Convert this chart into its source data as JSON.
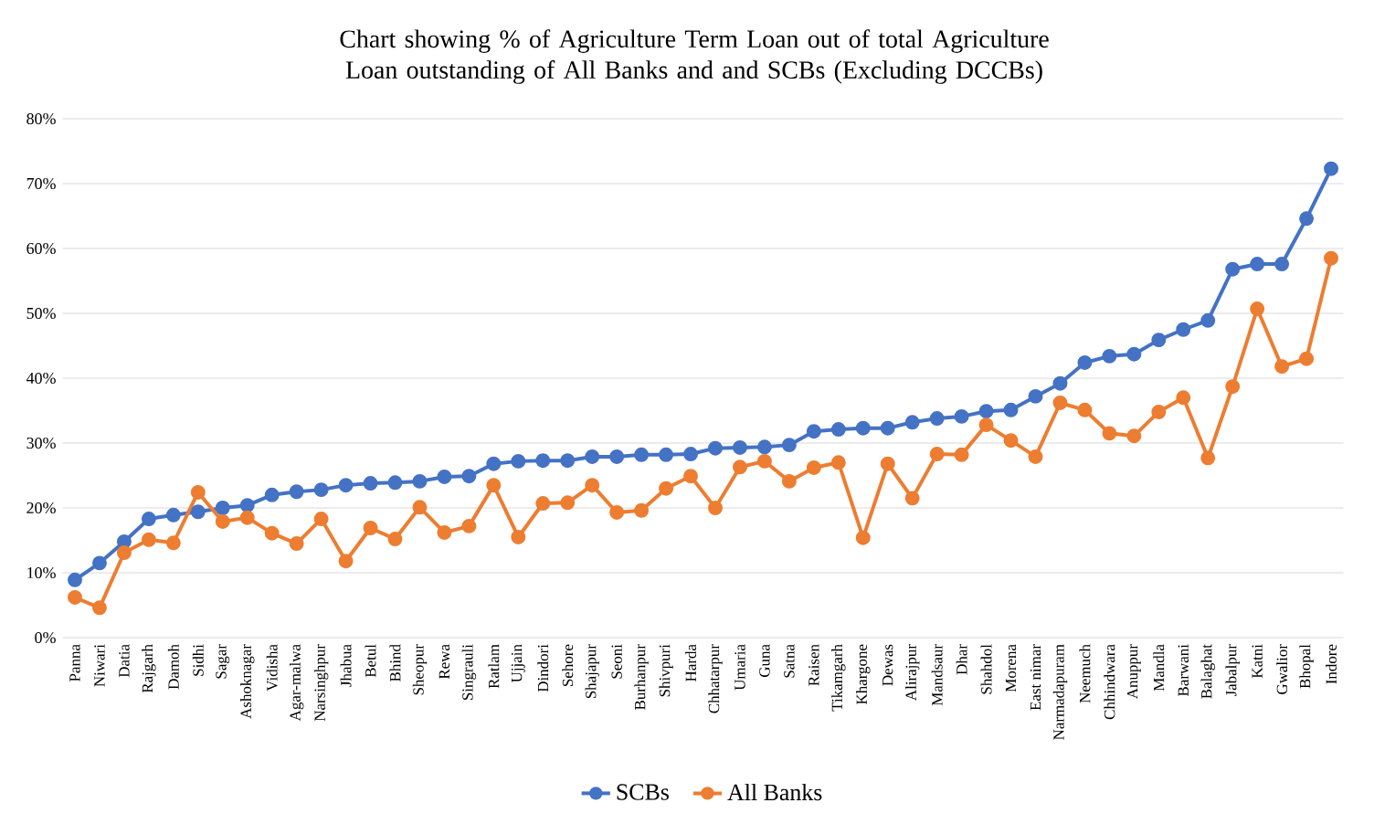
{
  "chart_data": {
    "type": "line",
    "title": "Chart showing % of Agriculture Term Loan out of total Agriculture Loan outstanding of All Banks and and SCBs (Excluding DCCBs)",
    "categories": [
      "Panna",
      "Niwari",
      "Datia",
      "Rajgarh",
      "Damoh",
      "Sidhi",
      "Sagar",
      "Ashoknagar",
      "Vidisha",
      "Agar-malwa",
      "Narsinghpur",
      "Jhabua",
      "Betul",
      "Bhind",
      "Sheopur",
      "Rewa",
      "Singrauli",
      "Ratlam",
      "Ujjain",
      "Dindori",
      "Sehore",
      "Shajapur",
      "Seoni",
      "Burhanpur",
      "Shivpuri",
      "Harda",
      "Chhatarpur",
      "Umaria",
      "Guna",
      "Satna",
      "Raisen",
      "Tikamgarh",
      "Khargone",
      "Dewas",
      "Alirajpur",
      "Mandsaur",
      "Dhar",
      "Shahdol",
      "Morena",
      "East nimar",
      "Narmadapuram",
      "Neemuch",
      "Chhindwara",
      "Anuppur",
      "Mandla",
      "Barwani",
      "Balaghat",
      "Jabalpur",
      "Katni",
      "Gwalior",
      "Bhopal",
      "Indore"
    ],
    "series": [
      {
        "name": "SCBs",
        "color": "#4472c4",
        "values": [
          8.9,
          11.5,
          14.8,
          18.3,
          18.9,
          19.4,
          20.0,
          20.4,
          22.0,
          22.5,
          22.8,
          23.5,
          23.8,
          23.9,
          24.1,
          24.8,
          24.9,
          26.8,
          27.2,
          27.3,
          27.3,
          27.9,
          27.9,
          28.2,
          28.2,
          28.3,
          29.2,
          29.3,
          29.4,
          29.7,
          31.8,
          32.1,
          32.3,
          32.3,
          33.2,
          33.8,
          34.1,
          34.9,
          35.1,
          37.2,
          39.2,
          42.4,
          43.4,
          43.7,
          45.9,
          47.5,
          48.9,
          56.8,
          57.6,
          57.6,
          64.6,
          72.3
        ]
      },
      {
        "name": "All Banks",
        "color": "#ed7d31",
        "values": [
          6.2,
          4.6,
          13.1,
          15.1,
          14.6,
          22.4,
          17.9,
          18.5,
          16.1,
          14.5,
          18.3,
          11.8,
          16.9,
          15.2,
          20.1,
          16.2,
          17.2,
          23.5,
          15.5,
          20.7,
          20.8,
          23.5,
          19.3,
          19.6,
          23.0,
          24.9,
          20.0,
          26.3,
          27.2,
          24.1,
          26.2,
          27.0,
          15.4,
          26.8,
          21.5,
          28.3,
          28.2,
          32.8,
          30.4,
          27.9,
          36.2,
          35.1,
          31.5,
          31.1,
          34.8,
          37.0,
          27.7,
          38.7,
          50.7,
          41.8,
          43.0,
          58.5
        ]
      }
    ],
    "ylim": [
      0,
      80
    ],
    "yticks": [
      {
        "value": 0,
        "label": "0%"
      },
      {
        "value": 10,
        "label": "10%"
      },
      {
        "value": 20,
        "label": "20%"
      },
      {
        "value": 30,
        "label": "30%"
      },
      {
        "value": 40,
        "label": "40%"
      },
      {
        "value": 50,
        "label": "50%"
      },
      {
        "value": 60,
        "label": "60%"
      },
      {
        "value": 70,
        "label": "70%"
      },
      {
        "value": 80,
        "label": "80%"
      }
    ],
    "grid": "y",
    "legend": "bottom",
    "marker": "circle",
    "line_style": "solid"
  }
}
